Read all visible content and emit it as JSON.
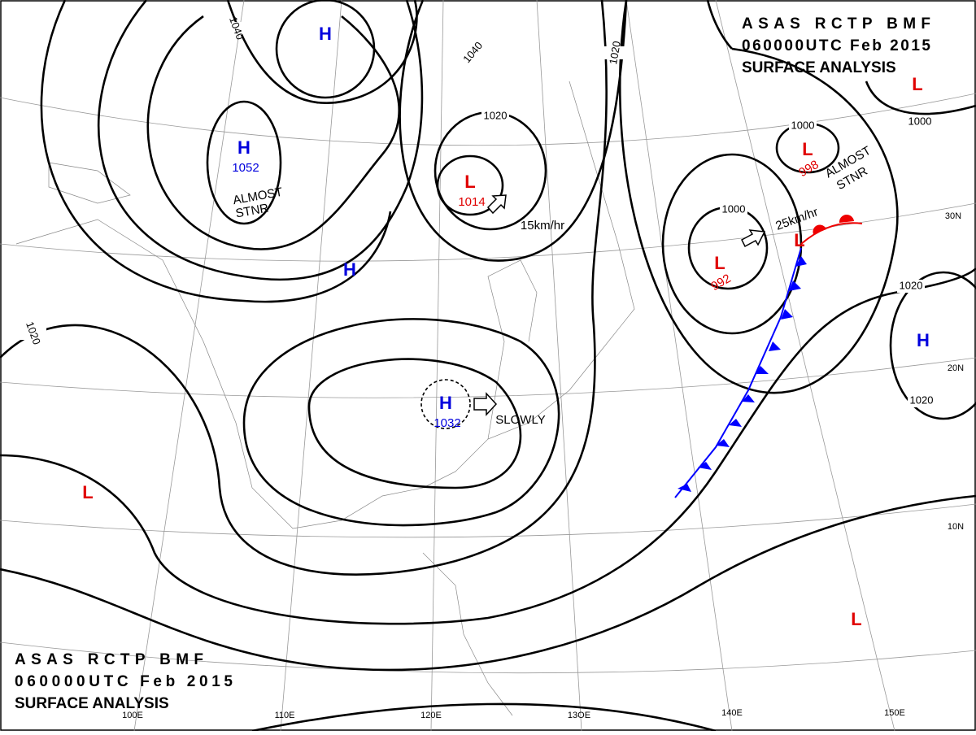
{
  "header": {
    "lines": [
      "ASAS  RCTP  BMF",
      "060000UTC  Feb  2015",
      "SURFACE ANALYSIS"
    ]
  },
  "systems": [
    {
      "symbol": "H"
    },
    {
      "symbol": "H",
      "pressure": "1052"
    },
    {
      "symbol": "H"
    },
    {
      "symbol": "H",
      "pressure": "1032"
    },
    {
      "symbol": "H"
    },
    {
      "symbol": "L",
      "pressure": "1014"
    },
    {
      "symbol": "L",
      "pressure": "998"
    },
    {
      "symbol": "L",
      "pressure": "992"
    },
    {
      "symbol": "L"
    },
    {
      "symbol": "L"
    },
    {
      "symbol": "L"
    },
    {
      "symbol": "L"
    }
  ],
  "isobar_labels": [
    "1040",
    "1040",
    "1020",
    "1020",
    "1000",
    "1000",
    "1000",
    "1020",
    "1020",
    "1020"
  ],
  "annotations": {
    "stnr_left": [
      "ALMOST",
      "STNR"
    ],
    "stnr_right": [
      "ALMOST",
      "STNR"
    ],
    "speed_1014": "15km/hr",
    "speed_992": "25km/hr",
    "speed_1032": "SLOWLY"
  },
  "latitudes": [
    "30N",
    "20N",
    "10N"
  ],
  "longitudes": [
    "100E",
    "110E",
    "120E",
    "13OE",
    "140E",
    "150E"
  ]
}
